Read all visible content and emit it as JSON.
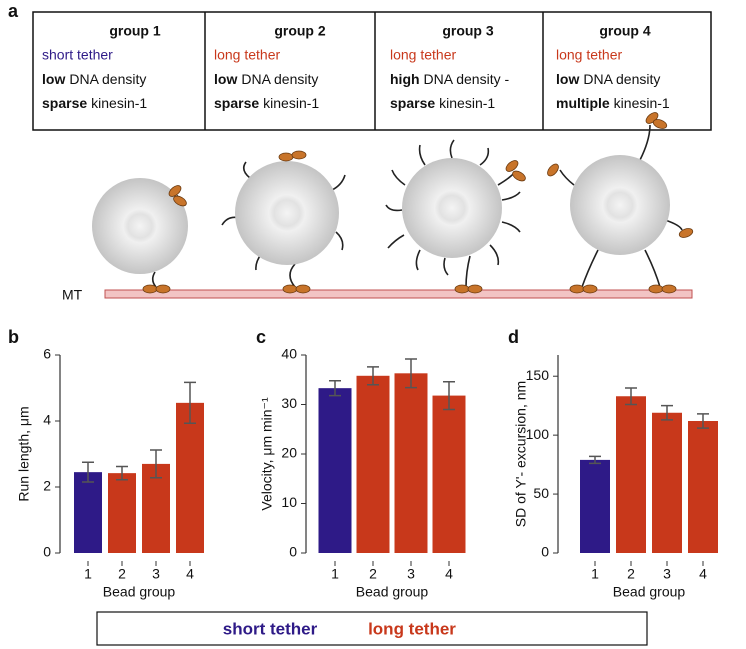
{
  "panel_labels": [
    "a",
    "b",
    "c",
    "d"
  ],
  "panel_a": {
    "mt_label": "MT",
    "groups": [
      {
        "title": "group 1",
        "tether": "short tether",
        "tether_color": "#2e1a87",
        "density": [
          "low",
          "DNA density"
        ],
        "kinesin": [
          "sparse",
          "kinesin-1"
        ]
      },
      {
        "title": "group 2",
        "tether": "long tether",
        "tether_color": "#c8381b",
        "density": [
          "low",
          "DNA density"
        ],
        "kinesin": [
          "sparse",
          "kinesin-1"
        ]
      },
      {
        "title": "group 3",
        "tether": "long tether",
        "tether_color": "#c8381b",
        "density": [
          "high",
          "DNA density -"
        ],
        "kinesin": [
          "sparse",
          "kinesin-1"
        ]
      },
      {
        "title": "group 4",
        "tether": "long tether",
        "tether_color": "#c8381b",
        "density": [
          "low",
          "DNA density"
        ],
        "kinesin": [
          "multiple",
          "kinesin-1"
        ]
      }
    ]
  },
  "chart_data": [
    {
      "type": "bar",
      "ylabel": "Run length, μm",
      "xlabel": "Bead group",
      "categories": [
        "1",
        "2",
        "3",
        "4"
      ],
      "values": [
        2.45,
        2.42,
        2.7,
        4.55
      ],
      "errors": [
        0.3,
        0.2,
        0.42,
        0.62
      ],
      "colors": [
        "#2e1a87",
        "#c8381b",
        "#c8381b",
        "#c8381b"
      ],
      "ylim": [
        0,
        6
      ],
      "yticks": [
        0,
        2,
        4,
        6
      ]
    },
    {
      "type": "bar",
      "ylabel": "Velocity, μm min⁻¹",
      "xlabel": "Bead group",
      "categories": [
        "1",
        "2",
        "3",
        "4"
      ],
      "values": [
        33.3,
        35.8,
        36.3,
        31.8
      ],
      "errors": [
        1.5,
        1.8,
        2.9,
        2.8
      ],
      "colors": [
        "#2e1a87",
        "#c8381b",
        "#c8381b",
        "#c8381b"
      ],
      "ylim": [
        0,
        40
      ],
      "yticks": [
        0,
        10,
        20,
        30,
        40
      ]
    },
    {
      "type": "bar",
      "ylabel": "SD of Y'- excursion, nm",
      "xlabel": "Bead group",
      "categories": [
        "1",
        "2",
        "3",
        "4"
      ],
      "values": [
        79,
        133,
        119,
        112
      ],
      "errors": [
        3,
        7,
        6,
        6
      ],
      "colors": [
        "#2e1a87",
        "#c8381b",
        "#c8381b",
        "#c8381b"
      ],
      "ylim": [
        0,
        168
      ],
      "yticks": [
        0,
        50,
        100,
        150
      ]
    }
  ],
  "legend": [
    {
      "name": "short tether",
      "color": "#2e1a87"
    },
    {
      "name": "long tether",
      "color": "#c8381b"
    }
  ]
}
